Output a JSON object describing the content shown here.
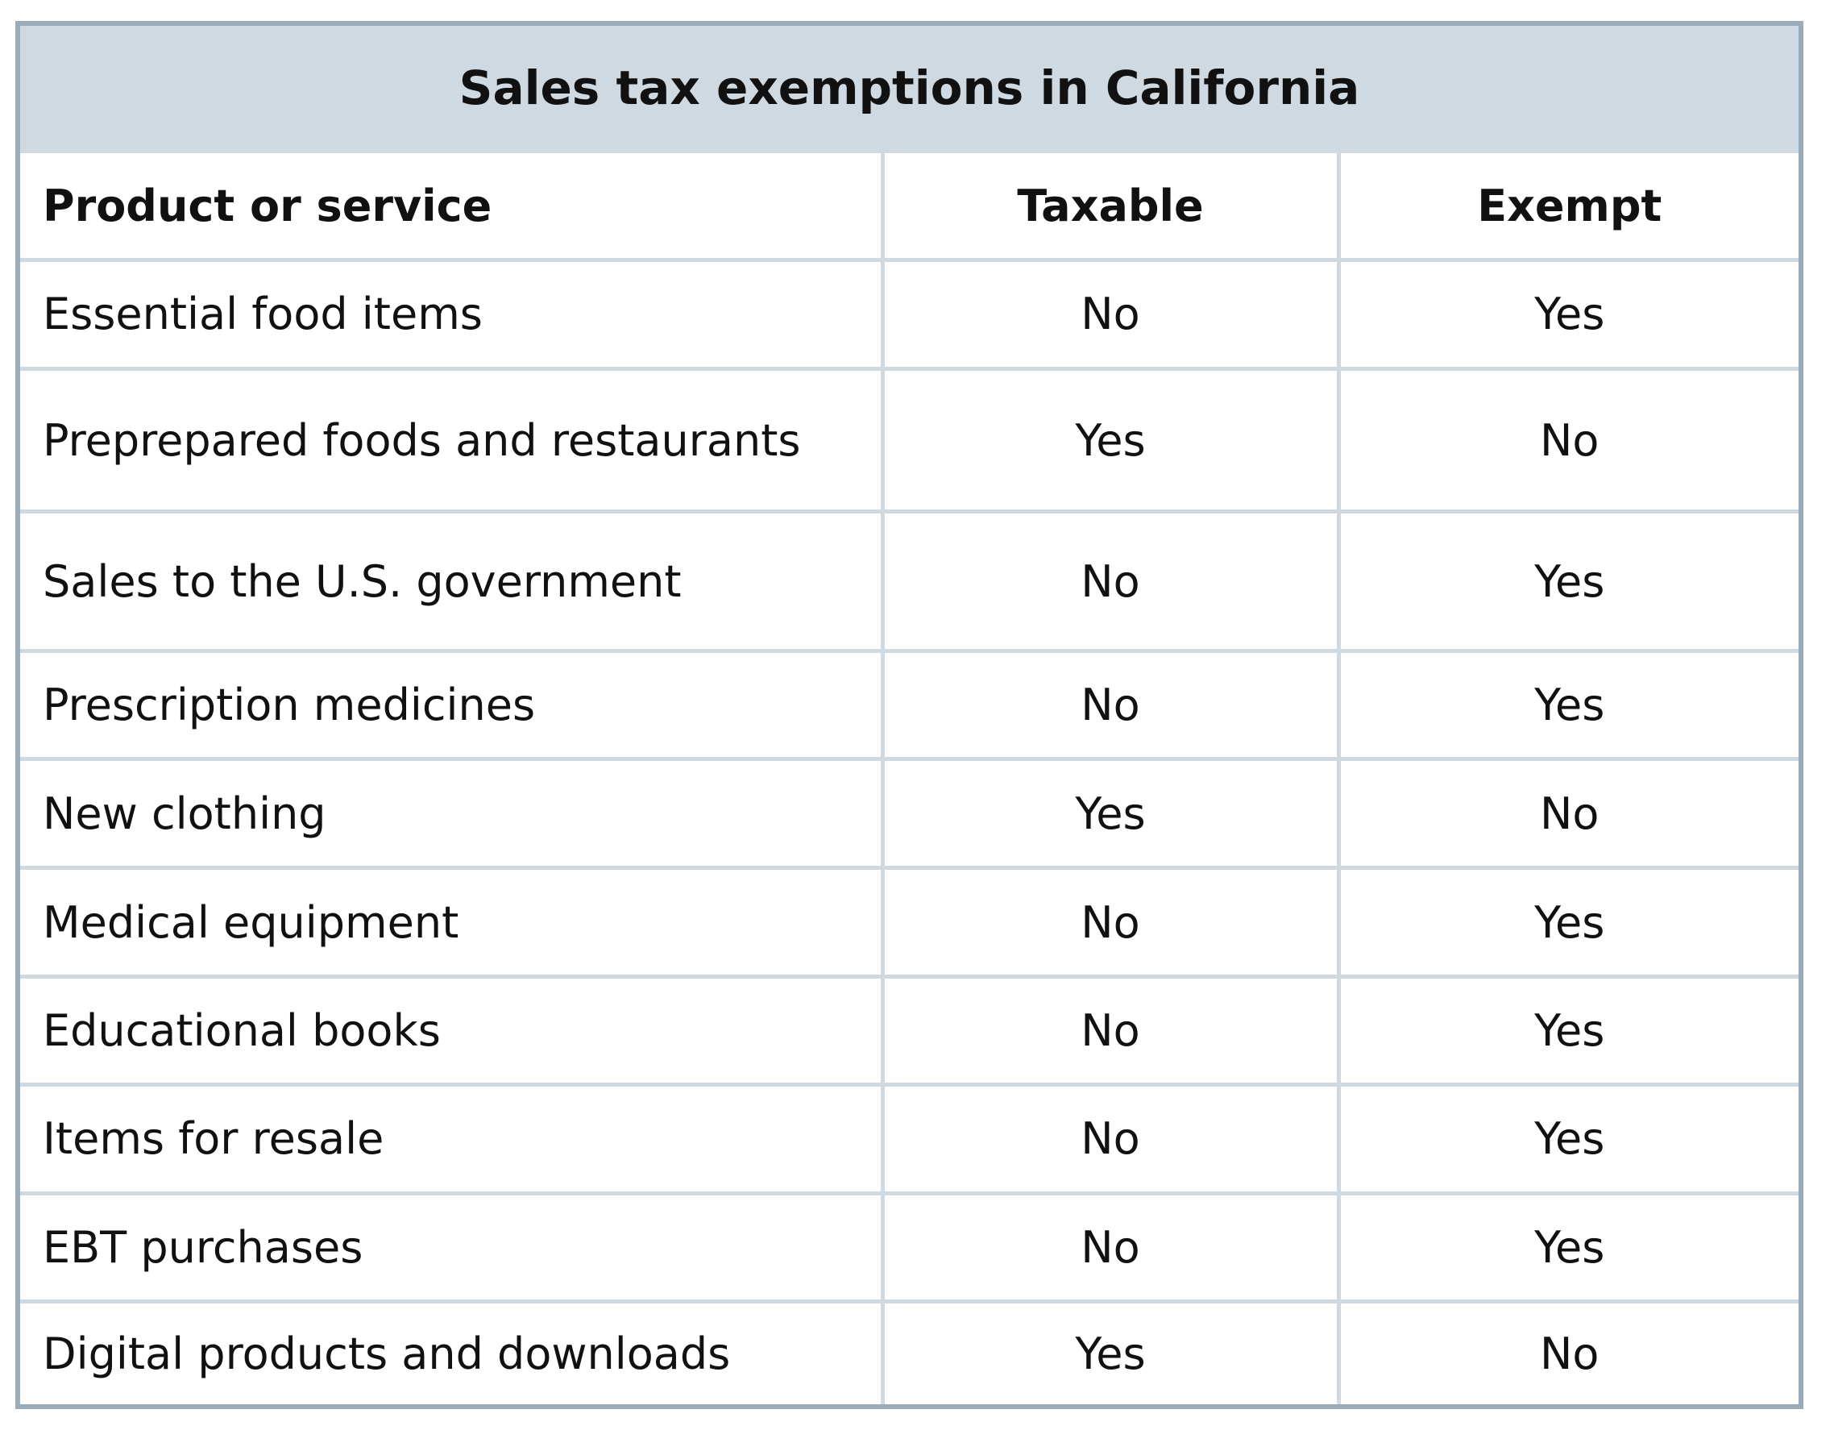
{
  "table": {
    "title": "Sales tax exemptions in California",
    "columns": [
      "Product or service",
      "Taxable",
      "Exempt"
    ],
    "rows": [
      [
        "Essential food items",
        "No",
        "Yes"
      ],
      [
        "Preprepared foods and restaurants",
        "Yes",
        "No"
      ],
      [
        "Sales to the U.S. government",
        "No",
        "Yes"
      ],
      [
        "Prescription medicines",
        "No",
        "Yes"
      ],
      [
        "New clothing",
        "Yes",
        "No"
      ],
      [
        "Medical equipment",
        "No",
        "Yes"
      ],
      [
        "Educational books",
        "No",
        "Yes"
      ],
      [
        "Items for resale",
        "No",
        "Yes"
      ],
      [
        "EBT purchases",
        "No",
        "Yes"
      ],
      [
        "Digital products and downloads",
        "Yes",
        "No"
      ]
    ]
  },
  "colors": {
    "header_bg": "#cfd9e1",
    "border": "#9aabb9",
    "grid": "#cfd9e1"
  }
}
